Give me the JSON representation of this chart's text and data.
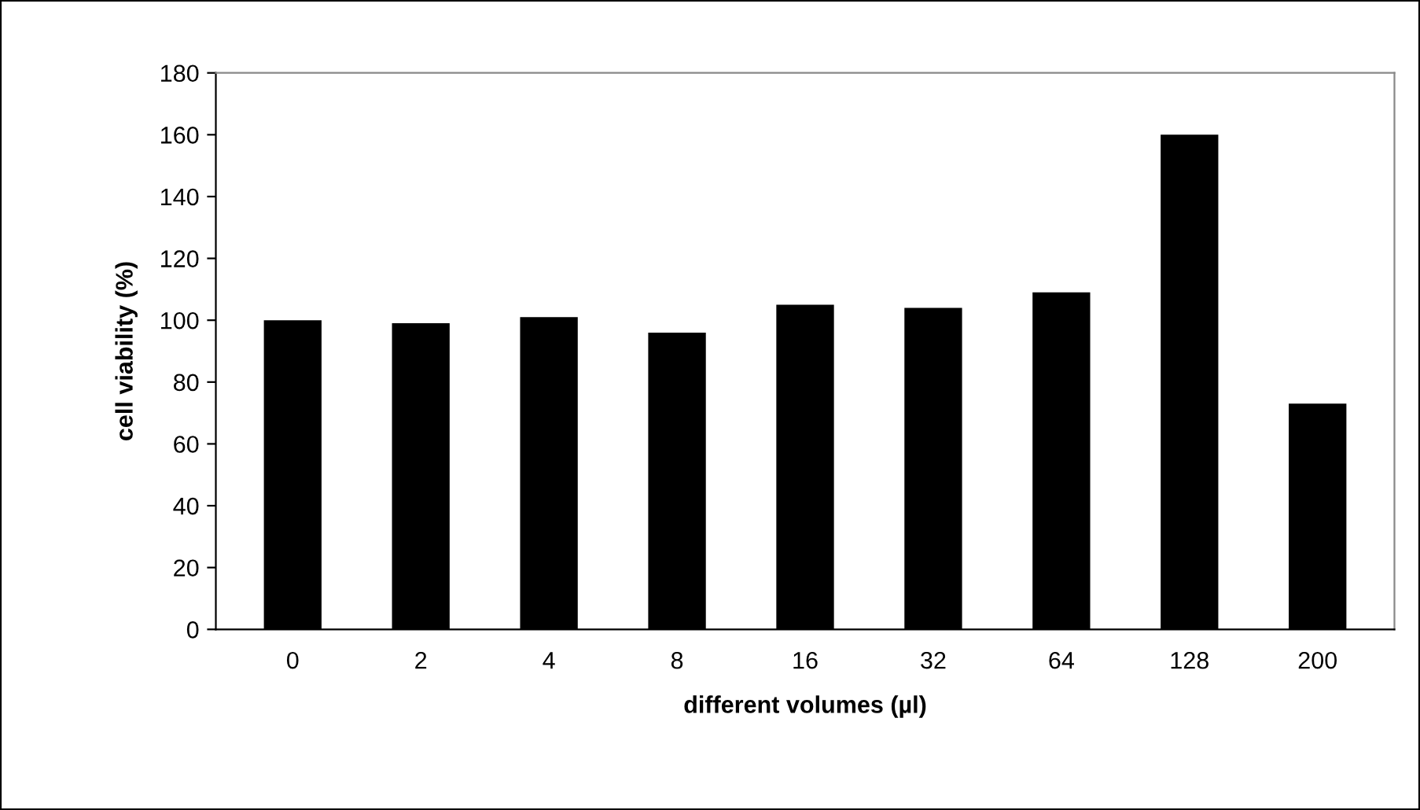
{
  "chart_data": {
    "type": "bar",
    "xlabel": "different volumes (µl)",
    "ylabel": "cell viability (%)",
    "categories": [
      "0",
      "2",
      "4",
      "8",
      "16",
      "32",
      "64",
      "128",
      "200"
    ],
    "values": [
      100,
      99,
      101,
      96,
      105,
      104,
      109,
      160,
      73
    ],
    "color": "#000000",
    "ylim": [
      0,
      180
    ],
    "yticks": [
      0,
      20,
      40,
      60,
      80,
      100,
      120,
      140,
      160,
      180
    ],
    "grid": false,
    "legend": false
  }
}
